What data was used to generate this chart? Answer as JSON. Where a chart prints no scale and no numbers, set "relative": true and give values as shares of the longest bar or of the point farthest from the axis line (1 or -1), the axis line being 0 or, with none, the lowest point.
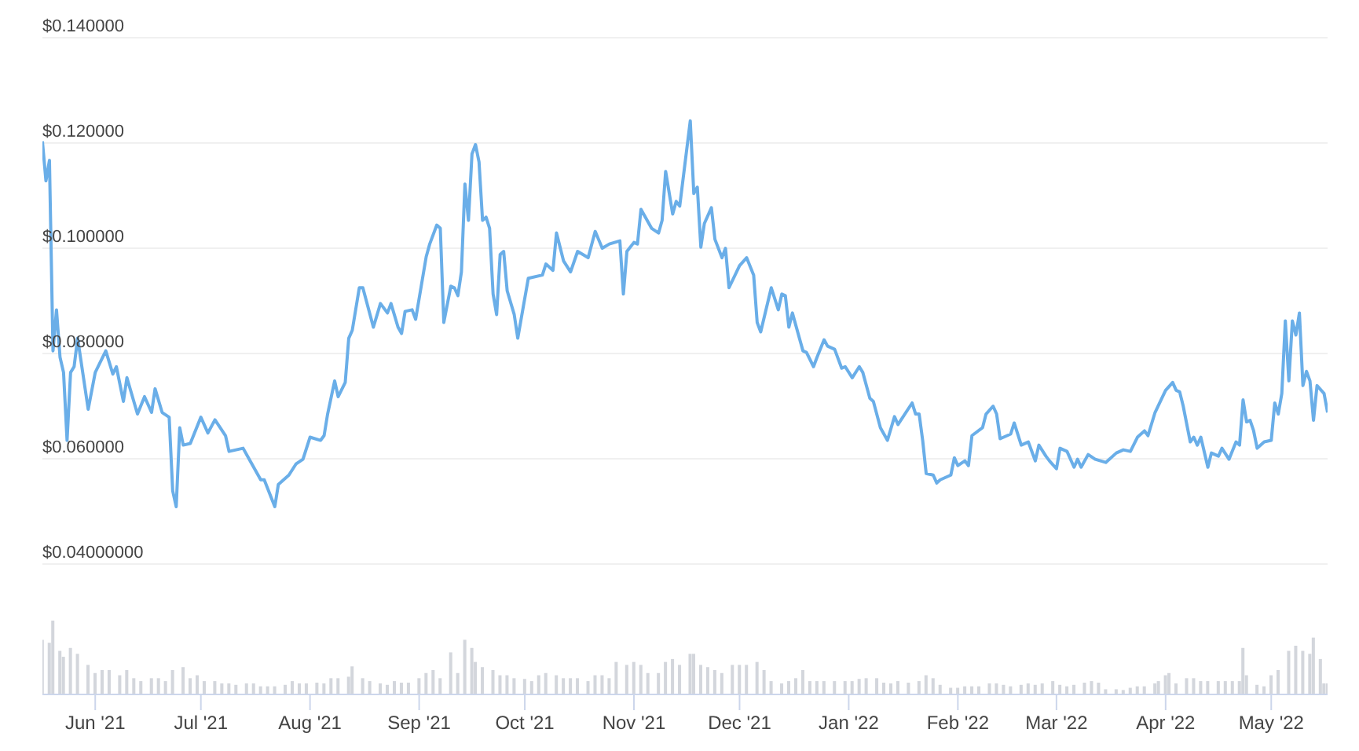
{
  "chart_data": [
    {
      "type": "line",
      "color": "#6aaee8",
      "grid": "y",
      "tick_labels": "y",
      "xlim": [
        "2021-05-17",
        "2022-05-17"
      ],
      "ylim": [
        0.04,
        0.14
      ],
      "yticks": [
        {
          "value": 0.04,
          "label": "$0.04000000"
        },
        {
          "value": 0.06,
          "label": "$0.060000"
        },
        {
          "value": 0.08,
          "label": "$0.080000"
        },
        {
          "value": 0.1,
          "label": "$0.100000"
        },
        {
          "value": 0.12,
          "label": "$0.120000"
        },
        {
          "value": 0.14,
          "label": "$0.140000"
        }
      ],
      "x": [
        "2021-05-17",
        "2021-05-18",
        "2021-05-19",
        "2021-05-20",
        "2021-05-21",
        "2021-05-22",
        "2021-05-23",
        "2021-05-24",
        "2021-05-25",
        "2021-05-26",
        "2021-05-27",
        "2021-05-28",
        "2021-05-30",
        "2021-06-01",
        "2021-06-04",
        "2021-06-06",
        "2021-06-07",
        "2021-06-09",
        "2021-06-10",
        "2021-06-13",
        "2021-06-15",
        "2021-06-17",
        "2021-06-18",
        "2021-06-20",
        "2021-06-22",
        "2021-06-23",
        "2021-06-24",
        "2021-06-25",
        "2021-06-26",
        "2021-06-28",
        "2021-07-01",
        "2021-07-03",
        "2021-07-05",
        "2021-07-08",
        "2021-07-09",
        "2021-07-13",
        "2021-07-15",
        "2021-07-18",
        "2021-07-19",
        "2021-07-22",
        "2021-07-23",
        "2021-07-26",
        "2021-07-28",
        "2021-07-30",
        "2021-08-01",
        "2021-08-04",
        "2021-08-05",
        "2021-08-06",
        "2021-08-08",
        "2021-08-09",
        "2021-08-11",
        "2021-08-12",
        "2021-08-13",
        "2021-08-15",
        "2021-08-16",
        "2021-08-19",
        "2021-08-21",
        "2021-08-23",
        "2021-08-24",
        "2021-08-26",
        "2021-08-27",
        "2021-08-28",
        "2021-08-30",
        "2021-08-31",
        "2021-09-03",
        "2021-09-04",
        "2021-09-06",
        "2021-09-07",
        "2021-09-08",
        "2021-09-10",
        "2021-09-11",
        "2021-09-12",
        "2021-09-13",
        "2021-09-14",
        "2021-09-15",
        "2021-09-16",
        "2021-09-17",
        "2021-09-18",
        "2021-09-19",
        "2021-09-20",
        "2021-09-21",
        "2021-09-22",
        "2021-09-23",
        "2021-09-24",
        "2021-09-25",
        "2021-09-26",
        "2021-09-28",
        "2021-09-29",
        "2021-10-02",
        "2021-10-06",
        "2021-10-07",
        "2021-10-09",
        "2021-10-10",
        "2021-10-12",
        "2021-10-14",
        "2021-10-16",
        "2021-10-19",
        "2021-10-21",
        "2021-10-23",
        "2021-10-25",
        "2021-10-28",
        "2021-10-29",
        "2021-10-30",
        "2021-11-01",
        "2021-11-02",
        "2021-11-03",
        "2021-11-06",
        "2021-11-08",
        "2021-11-09",
        "2021-11-10",
        "2021-11-12",
        "2021-11-13",
        "2021-11-14",
        "2021-11-17",
        "2021-11-18",
        "2021-11-19",
        "2021-11-20",
        "2021-11-21",
        "2021-11-23",
        "2021-11-24",
        "2021-11-26",
        "2021-11-27",
        "2021-11-28",
        "2021-12-01",
        "2021-12-03",
        "2021-12-05",
        "2021-12-06",
        "2021-12-07",
        "2021-12-10",
        "2021-12-12",
        "2021-12-13",
        "2021-12-14",
        "2021-12-15",
        "2021-12-16",
        "2021-12-19",
        "2021-12-20",
        "2021-12-22",
        "2021-12-23",
        "2021-12-25",
        "2021-12-26",
        "2021-12-28",
        "2021-12-30",
        "2021-12-31",
        "2022-01-02",
        "2022-01-04",
        "2022-01-05",
        "2022-01-07",
        "2022-01-08",
        "2022-01-10",
        "2022-01-12",
        "2022-01-14",
        "2022-01-15",
        "2022-01-19",
        "2022-01-20",
        "2022-01-21",
        "2022-01-22",
        "2022-01-23",
        "2022-01-25",
        "2022-01-26",
        "2022-01-27",
        "2022-01-30",
        "2022-01-31",
        "2022-02-01",
        "2022-02-03",
        "2022-02-04",
        "2022-02-05",
        "2022-02-08",
        "2022-02-09",
        "2022-02-11",
        "2022-02-12",
        "2022-02-13",
        "2022-02-16",
        "2022-02-17",
        "2022-02-19",
        "2022-02-21",
        "2022-02-23",
        "2022-02-24",
        "2022-02-26",
        "2022-02-27",
        "2022-03-01",
        "2022-03-02",
        "2022-03-04",
        "2022-03-06",
        "2022-03-07",
        "2022-03-08",
        "2022-03-10",
        "2022-03-12",
        "2022-03-15",
        "2022-03-18",
        "2022-03-20",
        "2022-03-22",
        "2022-03-24",
        "2022-03-26",
        "2022-03-27",
        "2022-03-29",
        "2022-04-01",
        "2022-04-03",
        "2022-04-04",
        "2022-04-05",
        "2022-04-06",
        "2022-04-08",
        "2022-04-09",
        "2022-04-10",
        "2022-04-11",
        "2022-04-13",
        "2022-04-14",
        "2022-04-16",
        "2022-04-17",
        "2022-04-19",
        "2022-04-21",
        "2022-04-22",
        "2022-04-23",
        "2022-04-24",
        "2022-04-25",
        "2022-04-26",
        "2022-04-27",
        "2022-04-29",
        "2022-05-01",
        "2022-05-02",
        "2022-05-03",
        "2022-05-04",
        "2022-05-05",
        "2022-05-06",
        "2022-05-07",
        "2022-05-08",
        "2022-05-09",
        "2022-05-10",
        "2022-05-11",
        "2022-05-12",
        "2022-05-13",
        "2022-05-14",
        "2022-05-16",
        "2022-05-17"
      ],
      "values": [
        0.1203,
        0.1128,
        0.1167,
        0.0805,
        0.0883,
        0.0793,
        0.0764,
        0.0635,
        0.0764,
        0.0775,
        0.0829,
        0.0784,
        0.0694,
        0.0764,
        0.0805,
        0.0761,
        0.0775,
        0.0709,
        0.0754,
        0.0685,
        0.0718,
        0.0688,
        0.0733,
        0.0688,
        0.0679,
        0.0539,
        0.0509,
        0.0659,
        0.0626,
        0.0629,
        0.0679,
        0.0649,
        0.0674,
        0.0644,
        0.0614,
        0.062,
        0.0596,
        0.056,
        0.056,
        0.0509,
        0.0551,
        0.0569,
        0.059,
        0.0599,
        0.0641,
        0.0635,
        0.0644,
        0.0685,
        0.0748,
        0.0718,
        0.0745,
        0.0829,
        0.0844,
        0.0925,
        0.0925,
        0.085,
        0.0895,
        0.0877,
        0.0895,
        0.085,
        0.0838,
        0.088,
        0.0883,
        0.0865,
        0.0984,
        0.1008,
        0.1044,
        0.1038,
        0.0859,
        0.0928,
        0.0925,
        0.091,
        0.0955,
        0.1122,
        0.1053,
        0.1179,
        0.1197,
        0.1164,
        0.1053,
        0.1059,
        0.1038,
        0.0913,
        0.0874,
        0.0988,
        0.0994,
        0.0919,
        0.0874,
        0.0829,
        0.0943,
        0.0949,
        0.097,
        0.0958,
        0.1029,
        0.0976,
        0.0955,
        0.0994,
        0.0982,
        0.1032,
        0.1,
        0.1008,
        0.1014,
        0.0913,
        0.0994,
        0.1011,
        0.1008,
        0.1074,
        0.1038,
        0.1029,
        0.1053,
        0.1146,
        0.1065,
        0.1089,
        0.108,
        0.1242,
        0.1104,
        0.1116,
        0.1002,
        0.1047,
        0.1077,
        0.1017,
        0.0982,
        0.1,
        0.0925,
        0.0967,
        0.0982,
        0.0949,
        0.0859,
        0.0841,
        0.0925,
        0.0883,
        0.0913,
        0.091,
        0.085,
        0.0877,
        0.0805,
        0.0802,
        0.0775,
        0.0793,
        0.0826,
        0.0814,
        0.0808,
        0.0772,
        0.0775,
        0.0754,
        0.0775,
        0.0764,
        0.0715,
        0.0709,
        0.0659,
        0.0635,
        0.068,
        0.0665,
        0.0706,
        0.0685,
        0.0685,
        0.0635,
        0.0572,
        0.0569,
        0.0554,
        0.056,
        0.0569,
        0.0602,
        0.0587,
        0.0596,
        0.0587,
        0.0644,
        0.0659,
        0.0685,
        0.07,
        0.0685,
        0.0638,
        0.0647,
        0.0668,
        0.0626,
        0.0632,
        0.0596,
        0.0626,
        0.0605,
        0.0596,
        0.0581,
        0.062,
        0.0614,
        0.0584,
        0.0599,
        0.0584,
        0.0608,
        0.0599,
        0.0593,
        0.0611,
        0.0617,
        0.0614,
        0.0641,
        0.0653,
        0.0644,
        0.0688,
        0.073,
        0.0745,
        0.073,
        0.0727,
        0.07,
        0.0632,
        0.0641,
        0.0626,
        0.0641,
        0.0584,
        0.0611,
        0.0605,
        0.062,
        0.0599,
        0.0632,
        0.0626,
        0.0712,
        0.067,
        0.0673,
        0.0653,
        0.062,
        0.0632,
        0.0635,
        0.0706,
        0.0685,
        0.0724,
        0.0862,
        0.0748,
        0.0862,
        0.0835,
        0.0877,
        0.0739,
        0.0766,
        0.0748,
        0.0673,
        0.0739,
        0.0724,
        0.0688
      ]
    },
    {
      "type": "bar",
      "color": "#d3d6dc",
      "relative": true,
      "tick_labels": "x",
      "xlim": [
        "2021-05-17",
        "2022-05-17"
      ],
      "xticks": [
        {
          "value": "2021-06-01",
          "label": "Jun '21"
        },
        {
          "value": "2021-07-01",
          "label": "Jul '21"
        },
        {
          "value": "2021-08-01",
          "label": "Aug '21"
        },
        {
          "value": "2021-09-01",
          "label": "Sep '21"
        },
        {
          "value": "2021-10-01",
          "label": "Oct '21"
        },
        {
          "value": "2021-11-01",
          "label": "Nov '21"
        },
        {
          "value": "2021-12-01",
          "label": "Dec '21"
        },
        {
          "value": "2022-01-01",
          "label": "Jan '22"
        },
        {
          "value": "2022-02-01",
          "label": "Feb '22"
        },
        {
          "value": "2022-03-01",
          "label": "Mar '22"
        },
        {
          "value": "2022-04-01",
          "label": "Apr '22"
        },
        {
          "value": "2022-05-01",
          "label": "May '22"
        }
      ],
      "x": [
        "2021-05-17",
        "2021-05-19",
        "2021-05-20",
        "2021-05-22",
        "2021-05-23",
        "2021-05-25",
        "2021-05-27",
        "2021-05-30",
        "2021-06-01",
        "2021-06-03",
        "2021-06-05",
        "2021-06-08",
        "2021-06-10",
        "2021-06-12",
        "2021-06-14",
        "2021-06-17",
        "2021-06-19",
        "2021-06-21",
        "2021-06-23",
        "2021-06-26",
        "2021-06-28",
        "2021-06-30",
        "2021-07-02",
        "2021-07-05",
        "2021-07-07",
        "2021-07-09",
        "2021-07-11",
        "2021-07-14",
        "2021-07-16",
        "2021-07-18",
        "2021-07-20",
        "2021-07-22",
        "2021-07-25",
        "2021-07-27",
        "2021-07-29",
        "2021-07-31",
        "2021-08-03",
        "2021-08-05",
        "2021-08-07",
        "2021-08-09",
        "2021-08-12",
        "2021-08-13",
        "2021-08-16",
        "2021-08-18",
        "2021-08-21",
        "2021-08-23",
        "2021-08-25",
        "2021-08-27",
        "2021-08-29",
        "2021-09-01",
        "2021-09-03",
        "2021-09-05",
        "2021-09-07",
        "2021-09-10",
        "2021-09-12",
        "2021-09-14",
        "2021-09-16",
        "2021-09-17",
        "2021-09-19",
        "2021-09-22",
        "2021-09-24",
        "2021-09-26",
        "2021-09-28",
        "2021-10-01",
        "2021-10-03",
        "2021-10-05",
        "2021-10-07",
        "2021-10-10",
        "2021-10-12",
        "2021-10-14",
        "2021-10-16",
        "2021-10-19",
        "2021-10-21",
        "2021-10-23",
        "2021-10-25",
        "2021-10-27",
        "2021-10-30",
        "2021-11-01",
        "2021-11-03",
        "2021-11-05",
        "2021-11-08",
        "2021-11-10",
        "2021-11-12",
        "2021-11-14",
        "2021-11-17",
        "2021-11-18",
        "2021-11-20",
        "2021-11-22",
        "2021-11-24",
        "2021-11-26",
        "2021-11-29",
        "2021-12-01",
        "2021-12-03",
        "2021-12-06",
        "2021-12-08",
        "2021-12-10",
        "2021-12-13",
        "2021-12-15",
        "2021-12-17",
        "2021-12-19",
        "2021-12-21",
        "2021-12-23",
        "2021-12-25",
        "2021-12-28",
        "2021-12-31",
        "2022-01-02",
        "2022-01-04",
        "2022-01-06",
        "2022-01-09",
        "2022-01-11",
        "2022-01-13",
        "2022-01-15",
        "2022-01-18",
        "2022-01-21",
        "2022-01-23",
        "2022-01-25",
        "2022-01-27",
        "2022-01-30",
        "2022-02-01",
        "2022-02-03",
        "2022-02-05",
        "2022-02-07",
        "2022-02-10",
        "2022-02-12",
        "2022-02-14",
        "2022-02-16",
        "2022-02-19",
        "2022-02-21",
        "2022-02-23",
        "2022-02-25",
        "2022-02-28",
        "2022-03-02",
        "2022-03-04",
        "2022-03-06",
        "2022-03-09",
        "2022-03-11",
        "2022-03-13",
        "2022-03-15",
        "2022-03-18",
        "2022-03-20",
        "2022-03-22",
        "2022-03-24",
        "2022-03-26",
        "2022-03-29",
        "2022-03-30",
        "2022-04-01",
        "2022-04-02",
        "2022-04-04",
        "2022-04-07",
        "2022-04-09",
        "2022-04-11",
        "2022-04-13",
        "2022-04-16",
        "2022-04-18",
        "2022-04-20",
        "2022-04-22",
        "2022-04-23",
        "2022-04-24",
        "2022-04-27",
        "2022-04-29",
        "2022-05-01",
        "2022-05-03",
        "2022-05-06",
        "2022-05-08",
        "2022-05-10",
        "2022-05-12",
        "2022-05-13",
        "2022-05-15",
        "2022-05-16",
        "2022-05-17"
      ],
      "values": [
        0.74,
        0.7,
        1,
        0.59,
        0.51,
        0.63,
        0.55,
        0.4,
        0.29,
        0.33,
        0.33,
        0.26,
        0.33,
        0.22,
        0.18,
        0.22,
        0.22,
        0.18,
        0.33,
        0.37,
        0.22,
        0.26,
        0.18,
        0.18,
        0.15,
        0.15,
        0.13,
        0.15,
        0.15,
        0.11,
        0.11,
        0.11,
        0.13,
        0.18,
        0.15,
        0.15,
        0.16,
        0.15,
        0.22,
        0.22,
        0.24,
        0.38,
        0.22,
        0.18,
        0.15,
        0.13,
        0.18,
        0.16,
        0.16,
        0.22,
        0.29,
        0.33,
        0.22,
        0.57,
        0.29,
        0.74,
        0.63,
        0.44,
        0.37,
        0.33,
        0.26,
        0.26,
        0.22,
        0.21,
        0.18,
        0.26,
        0.29,
        0.26,
        0.22,
        0.22,
        0.22,
        0.18,
        0.26,
        0.26,
        0.22,
        0.44,
        0.4,
        0.44,
        0.4,
        0.29,
        0.29,
        0.44,
        0.48,
        0.4,
        0.55,
        0.55,
        0.4,
        0.37,
        0.33,
        0.29,
        0.4,
        0.4,
        0.4,
        0.44,
        0.33,
        0.18,
        0.15,
        0.18,
        0.22,
        0.33,
        0.18,
        0.18,
        0.18,
        0.18,
        0.18,
        0.18,
        0.21,
        0.22,
        0.22,
        0.16,
        0.15,
        0.18,
        0.16,
        0.18,
        0.26,
        0.22,
        0.13,
        0.09,
        0.09,
        0.11,
        0.11,
        0.11,
        0.15,
        0.15,
        0.13,
        0.11,
        0.13,
        0.15,
        0.13,
        0.15,
        0.18,
        0.13,
        0.11,
        0.13,
        0.16,
        0.18,
        0.16,
        0.07,
        0.07,
        0.06,
        0.09,
        0.11,
        0.11,
        0.15,
        0.18,
        0.26,
        0.29,
        0.15,
        0.22,
        0.22,
        0.18,
        0.18,
        0.18,
        0.18,
        0.18,
        0.18,
        0.63,
        0.26,
        0.13,
        0.11,
        0.26,
        0.33,
        0.59,
        0.66,
        0.59,
        0.55,
        0.77,
        0.48,
        0.15,
        0.15
      ]
    }
  ]
}
